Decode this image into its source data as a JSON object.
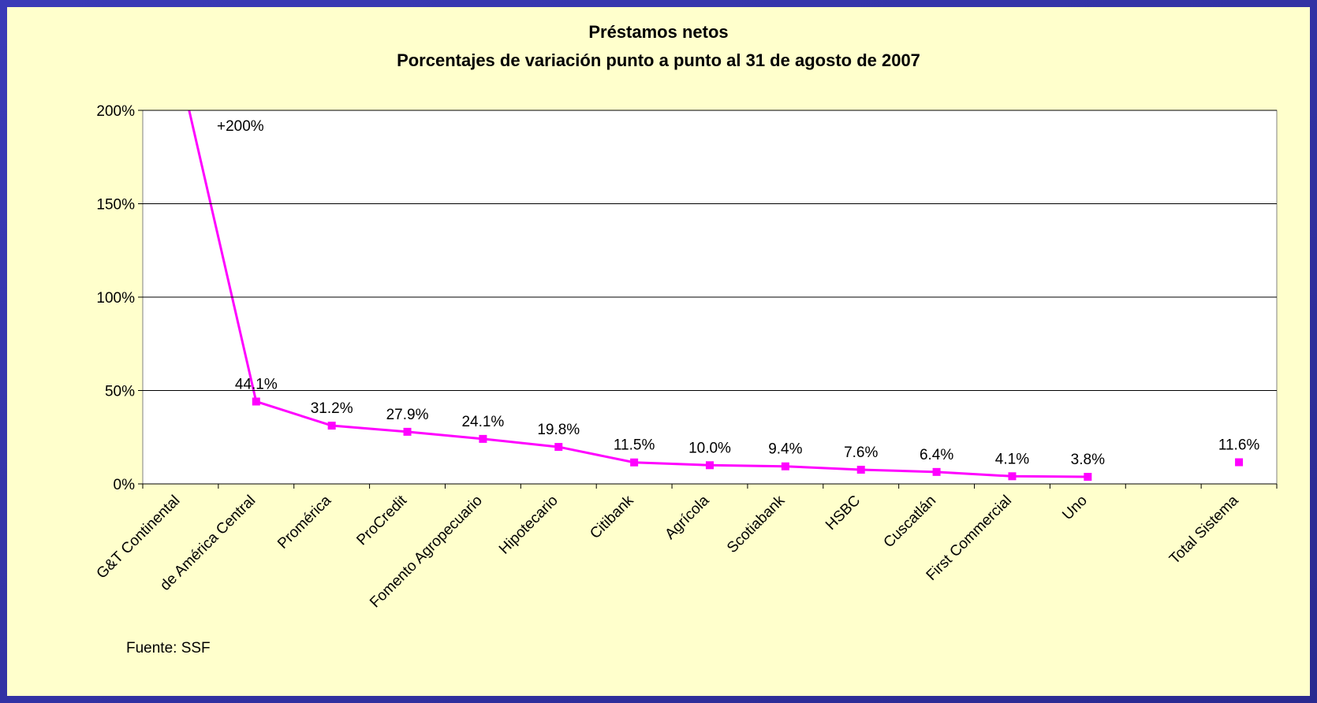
{
  "chart_data": {
    "type": "line",
    "title": "Préstamos netos",
    "subtitle": "Porcentajes de variación punto a punto al 31 de agosto de 2007",
    "categories": [
      "G&T Continental",
      "de América Central",
      "Promérica",
      "ProCredit",
      "Fomento Agropecuario",
      "Hipotecario",
      "Citibank",
      "Agrícola",
      "Scotiabank",
      "HSBC",
      "Cuscatlán",
      "First Commercial",
      "Uno",
      null,
      "Total Sistema"
    ],
    "series": [
      {
        "name": "Préstamos netos",
        "color": "#ff00ff",
        "values": [
          220,
          44.1,
          31.2,
          27.9,
          24.1,
          19.8,
          11.5,
          10.0,
          9.4,
          7.6,
          6.4,
          4.1,
          3.8,
          null,
          11.6
        ],
        "value_labels": [
          null,
          "44.1%",
          "31.2%",
          "27.9%",
          "24.1%",
          "19.8%",
          "11.5%",
          "10.0%",
          "9.4%",
          "7.6%",
          "6.4%",
          "4.1%",
          "3.8%",
          null,
          "11.6%"
        ]
      }
    ],
    "annotations": [
      "+200%"
    ],
    "source": "Fuente: SSF",
    "ylim": [
      0,
      200
    ],
    "yticks": [
      {
        "value": 0,
        "label": "0%"
      },
      {
        "value": 50,
        "label": "50%"
      },
      {
        "value": 100,
        "label": "100%"
      },
      {
        "value": 150,
        "label": "150%"
      },
      {
        "value": 200,
        "label": "200%"
      }
    ],
    "grid": true
  }
}
